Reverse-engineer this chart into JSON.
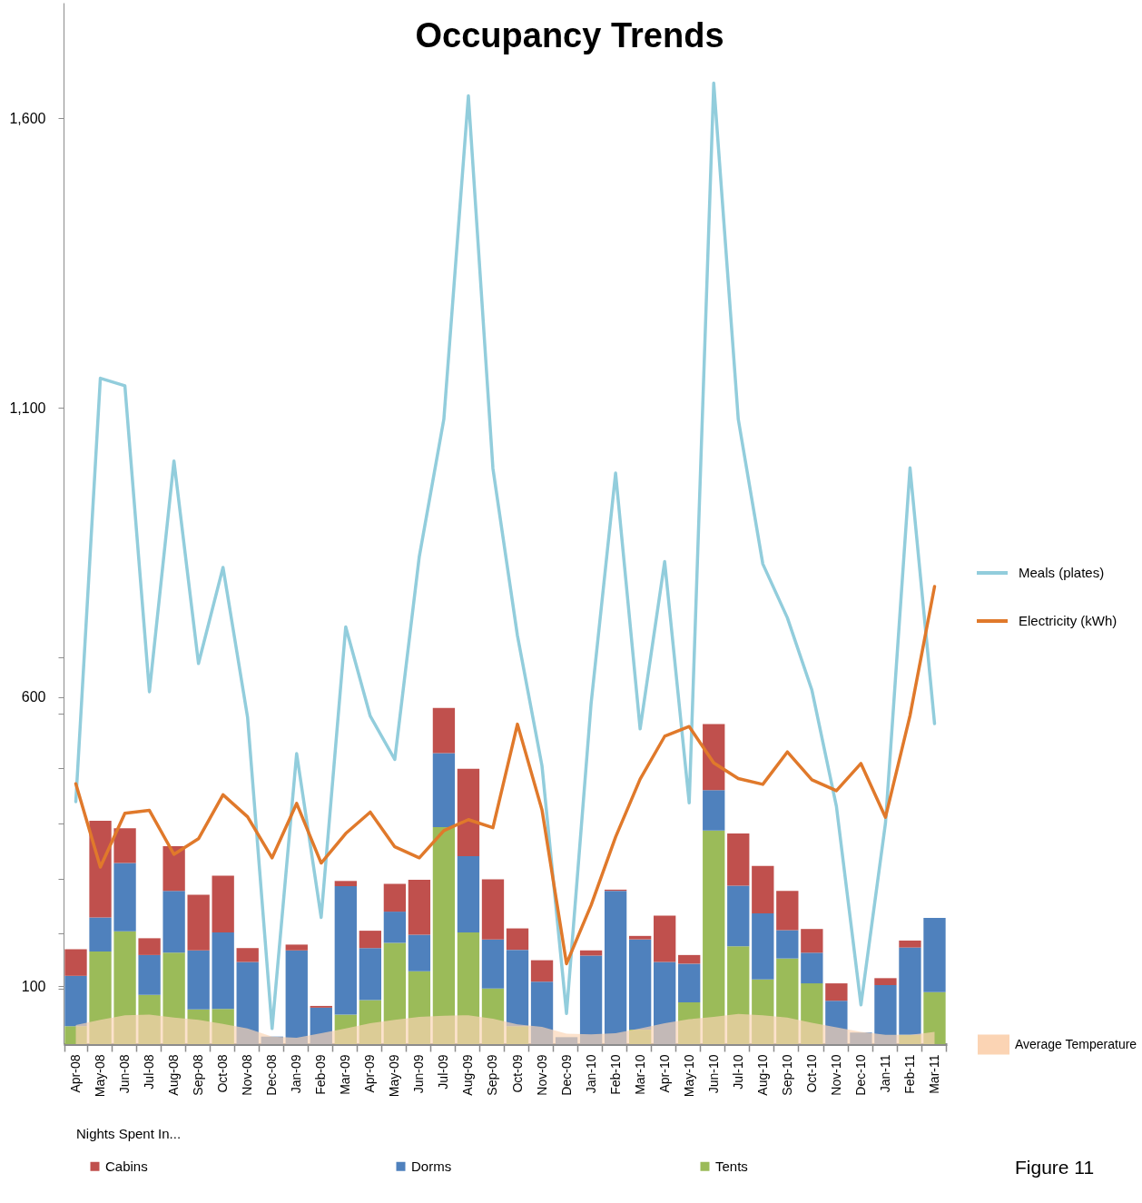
{
  "chart_data": {
    "type": "bar",
    "title": "Occupancy Trends",
    "legend_title": "Nights Spent In...",
    "stacked": true,
    "legend": "right",
    "categories": [
      "Apr-08",
      "May-08",
      "Jun-08",
      "Jul-08",
      "Aug-08",
      "Sep-08",
      "Oct-08",
      "Nov-08",
      "Dec-08",
      "Jan-09",
      "Feb-09",
      "Mar-09",
      "Apr-09",
      "May-09",
      "Jun-09",
      "Jul-09",
      "Aug-09",
      "Sep-09",
      "Oct-09",
      "Nov-09",
      "Dec-09",
      "Jan-10",
      "Feb-10",
      "Mar-10",
      "Apr-10",
      "May-10",
      "Jun-10",
      "Jul-10",
      "Aug-10",
      "Sep-10",
      "Oct-10",
      "Nov-10",
      "Dec-10",
      "Jan-11",
      "Feb-11",
      "Mar-11"
    ],
    "ylim": [
      0,
      1800
    ],
    "yticks": [
      {
        "value": 95,
        "label": null
      },
      100,
      {
        "value": 191,
        "label": null
      },
      {
        "value": 286,
        "label": null
      },
      {
        "value": 381,
        "label": null
      },
      {
        "value": 477,
        "label": null
      },
      {
        "value": 572,
        "label": null
      },
      600,
      {
        "value": 668,
        "label": null
      },
      {
        "value": 1100,
        "label": "1,100"
      },
      {
        "value": 1600,
        "label": "1,600"
      }
    ],
    "annotations": [
      "Figure 11"
    ],
    "series": [
      {
        "name": "Tents",
        "color": "#9bbb59",
        "values": [
          31,
          160,
          195,
          85,
          158,
          60,
          61,
          null,
          null,
          null,
          null,
          51,
          76,
          175,
          126,
          375,
          193,
          96,
          31,
          null,
          null,
          null,
          null,
          25,
          null,
          72,
          369,
          169,
          112,
          148,
          105,
          null,
          null,
          null,
          16,
          90
        ]
      },
      {
        "name": "Dorms",
        "color": "#4f81bd",
        "values": [
          87,
          59,
          118,
          69,
          107,
          102,
          132,
          142,
          13,
          162,
          63,
          222,
          90,
          54,
          63,
          128,
          132,
          85,
          132,
          108,
          12,
          153,
          265,
          156,
          142,
          67,
          70,
          105,
          114,
          49,
          53,
          75,
          20,
          102,
          151,
          128
        ]
      },
      {
        "name": "Cabins",
        "color": "#c0504d",
        "values": [
          46,
          167,
          60,
          29,
          77,
          96,
          98,
          24,
          null,
          10,
          3,
          9,
          30,
          48,
          95,
          78,
          151,
          104,
          37,
          37,
          null,
          9,
          2,
          6,
          80,
          15,
          114,
          90,
          82,
          68,
          41,
          30,
          null,
          12,
          12,
          null
        ]
      },
      {
        "name": "Average Temperature",
        "type": "area",
        "color": "#fbd4b4",
        "values": [
          33,
          42,
          50,
          51,
          46,
          42,
          35,
          27,
          13,
          11,
          19,
          27,
          36,
          42,
          47,
          49,
          50,
          44,
          34,
          30,
          18,
          17,
          19,
          27,
          36,
          43,
          47,
          52,
          50,
          46,
          37,
          29,
          21,
          16,
          16,
          21
        ]
      },
      {
        "name": "Meals (plates)",
        "type": "line",
        "color": "#92cddc",
        "values": [
          419,
          1151,
          1138,
          609,
          1008,
          658,
          824,
          565,
          27,
          502,
          219,
          721,
          567,
          492,
          843,
          1080,
          1639,
          995,
          706,
          481,
          53,
          588,
          987,
          545,
          834,
          417,
          1661,
          1080,
          830,
          737,
          612,
          411,
          68,
          382,
          996,
          554
        ]
      },
      {
        "name": "Electricity (kWh)",
        "type": "line",
        "color": "#e0792b",
        "values": [
          450,
          306,
          399,
          404,
          328,
          355,
          431,
          393,
          322,
          416,
          313,
          364,
          401,
          341,
          322,
          369,
          388,
          374,
          553,
          405,
          139,
          240,
          358,
          458,
          532,
          549,
          486,
          459,
          449,
          505,
          457,
          438,
          485,
          392,
          568,
          791
        ]
      }
    ]
  }
}
